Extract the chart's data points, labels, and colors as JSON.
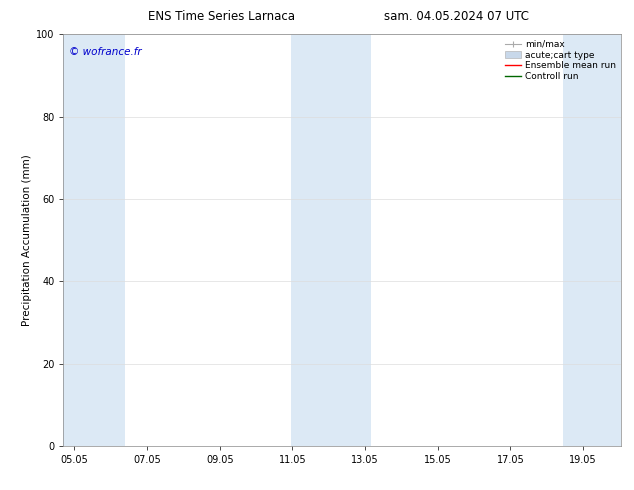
{
  "title_left": "ENS Time Series Larnaca",
  "title_right": "sam. 04.05.2024 07 UTC",
  "ylabel": "Precipitation Accumulation (mm)",
  "watermark": "© wofrance.fr",
  "watermark_color": "#0000cc",
  "ylim": [
    0,
    100
  ],
  "yticks": [
    0,
    20,
    40,
    60,
    80,
    100
  ],
  "x_start": 4.75,
  "x_end": 20.1,
  "xtick_labels": [
    "05.05",
    "07.05",
    "09.05",
    "11.05",
    "13.05",
    "15.05",
    "17.05",
    "19.05"
  ],
  "xtick_positions": [
    5.05,
    7.05,
    9.05,
    11.05,
    13.05,
    15.05,
    17.05,
    19.05
  ],
  "shaded_bands": [
    {
      "xmin": 4.75,
      "xmax": 5.55,
      "color": "#dce9f5"
    },
    {
      "xmin": 5.55,
      "xmax": 6.45,
      "color": "#dce9f5"
    },
    {
      "xmin": 11.0,
      "xmax": 11.7,
      "color": "#dce9f5"
    },
    {
      "xmin": 11.7,
      "xmax": 13.2,
      "color": "#dce9f5"
    },
    {
      "xmin": 18.5,
      "xmax": 19.15,
      "color": "#dce9f5"
    },
    {
      "xmin": 19.15,
      "xmax": 20.1,
      "color": "#dce9f5"
    }
  ],
  "bg_color": "#ffffff",
  "grid_color": "#dddddd",
  "legend_items": [
    {
      "label": "min/max",
      "type": "minmax",
      "color": "#aaaaaa"
    },
    {
      "label": "acute;cart type",
      "type": "bar",
      "color": "#c8d8ea"
    },
    {
      "label": "Ensemble mean run",
      "type": "line",
      "color": "#ff0000"
    },
    {
      "label": "Controll run",
      "type": "line",
      "color": "#006600"
    }
  ],
  "title_fontsize": 8.5,
  "label_fontsize": 7.5,
  "tick_fontsize": 7,
  "legend_fontsize": 6.5,
  "watermark_fontsize": 7.5
}
